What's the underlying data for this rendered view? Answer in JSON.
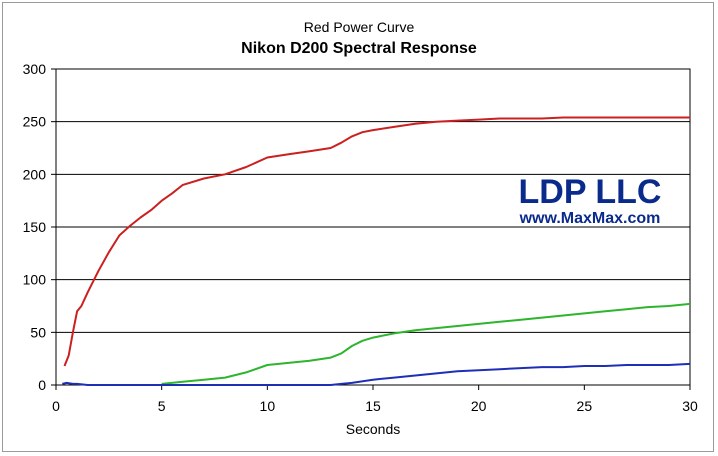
{
  "chart_data": {
    "type": "line",
    "title": "Nikon D200 Spectral Response",
    "subtitle": "Red Power Curve",
    "xlabel": "Seconds",
    "ylabel": "",
    "xlim": [
      0,
      30
    ],
    "ylim": [
      0,
      300
    ],
    "xticks": [
      0,
      5,
      10,
      15,
      20,
      25,
      30
    ],
    "yticks": [
      0,
      50,
      100,
      150,
      200,
      250,
      300
    ],
    "grid": "horizontal",
    "legend": "none",
    "watermark": {
      "line1": "LDP LLC",
      "line2": "www.MaxMax.com",
      "color": "#0a2a8c"
    },
    "series": [
      {
        "color": "#cc1f1f",
        "x": [
          0.4,
          0.6,
          0.8,
          1.0,
          1.2,
          1.5,
          2.0,
          2.5,
          3.0,
          3.5,
          4.0,
          4.5,
          5.0,
          5.5,
          6.0,
          7.0,
          8.0,
          9.0,
          10.0,
          11.0,
          12.0,
          13.0,
          13.5,
          14.0,
          14.5,
          15.0,
          16.0,
          17.0,
          18.0,
          19.0,
          20.0,
          21.0,
          22.0,
          23.0,
          24.0,
          25.0,
          26.0,
          27.0,
          28.0,
          29.0,
          30.0
        ],
        "y": [
          18,
          28,
          50,
          70,
          75,
          88,
          108,
          126,
          142,
          151,
          159,
          166,
          175,
          182,
          190,
          196,
          200,
          207,
          216,
          219,
          222,
          225,
          230,
          236,
          240,
          242,
          245,
          248,
          250,
          251,
          252,
          253,
          253,
          253,
          254,
          254,
          254,
          254,
          254,
          254,
          254
        ]
      },
      {
        "color": "#2db52d",
        "x": [
          5.0,
          6.0,
          7.0,
          8.0,
          9.0,
          10.0,
          11.0,
          12.0,
          13.0,
          13.5,
          14.0,
          14.5,
          15.0,
          16.0,
          17.0,
          18.0,
          19.0,
          20.0,
          21.0,
          22.0,
          23.0,
          24.0,
          25.0,
          26.0,
          27.0,
          28.0,
          29.0,
          30.0
        ],
        "y": [
          1,
          3,
          5,
          7,
          12,
          19,
          21,
          23,
          26,
          30,
          37,
          42,
          45,
          49,
          52,
          54,
          56,
          58,
          60,
          62,
          64,
          66,
          68,
          70,
          72,
          74,
          75,
          77
        ]
      },
      {
        "color": "#1f2fb5",
        "x": [
          0.3,
          0.5,
          0.8,
          1.0,
          1.5,
          13.0,
          13.5,
          14.0,
          15.0,
          16.0,
          17.0,
          18.0,
          19.0,
          20.0,
          21.0,
          22.0,
          23.0,
          24.0,
          25.0,
          26.0,
          27.0,
          28.0,
          29.0,
          30.0
        ],
        "y": [
          1,
          2,
          1,
          1,
          0,
          0,
          1,
          2,
          5,
          7,
          9,
          11,
          13,
          14,
          15,
          16,
          17,
          17,
          18,
          18,
          19,
          19,
          19,
          20
        ]
      }
    ]
  }
}
